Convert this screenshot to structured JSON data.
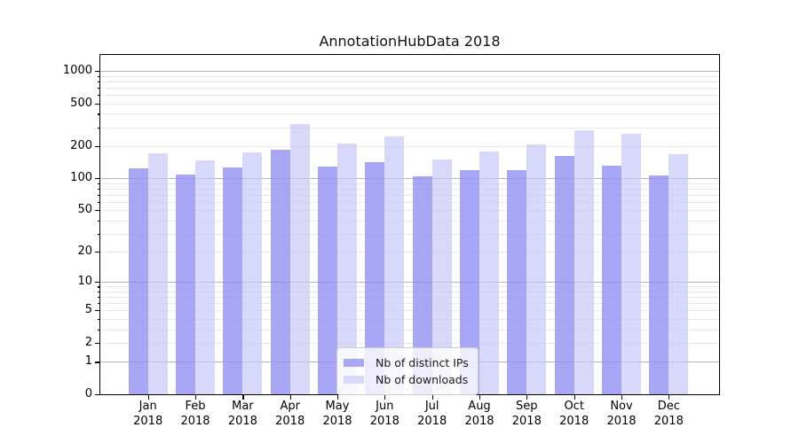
{
  "chart_data": {
    "type": "bar",
    "title": "AnnotationHubData 2018",
    "categories": [
      "Jan",
      "Feb",
      "Mar",
      "Apr",
      "May",
      "Jun",
      "Jul",
      "Aug",
      "Sep",
      "Oct",
      "Nov",
      "Dec"
    ],
    "year_label": "2018",
    "series": [
      {
        "name": "Nb of distinct IPs",
        "color": "rgba(145,145,243,0.8)",
        "legend_color": "#a7a7f3",
        "values": [
          124,
          108,
          127,
          186,
          130,
          143,
          105,
          120,
          120,
          162,
          132,
          107
        ]
      },
      {
        "name": "Nb of downloads",
        "color": "rgba(199,199,250,0.7)",
        "legend_color": "#d8d8fa",
        "values": [
          170,
          148,
          174,
          323,
          210,
          245,
          150,
          178,
          206,
          282,
          260,
          167
        ]
      }
    ],
    "yscale": "log1p",
    "y_ticks": [
      0,
      1,
      2,
      5,
      10,
      20,
      50,
      100,
      200,
      500,
      1000
    ],
    "major_gridline_values": [
      1,
      10,
      100,
      1000
    ],
    "ylim": [
      0,
      1407
    ],
    "grid": true,
    "legend_position": "lower center"
  }
}
